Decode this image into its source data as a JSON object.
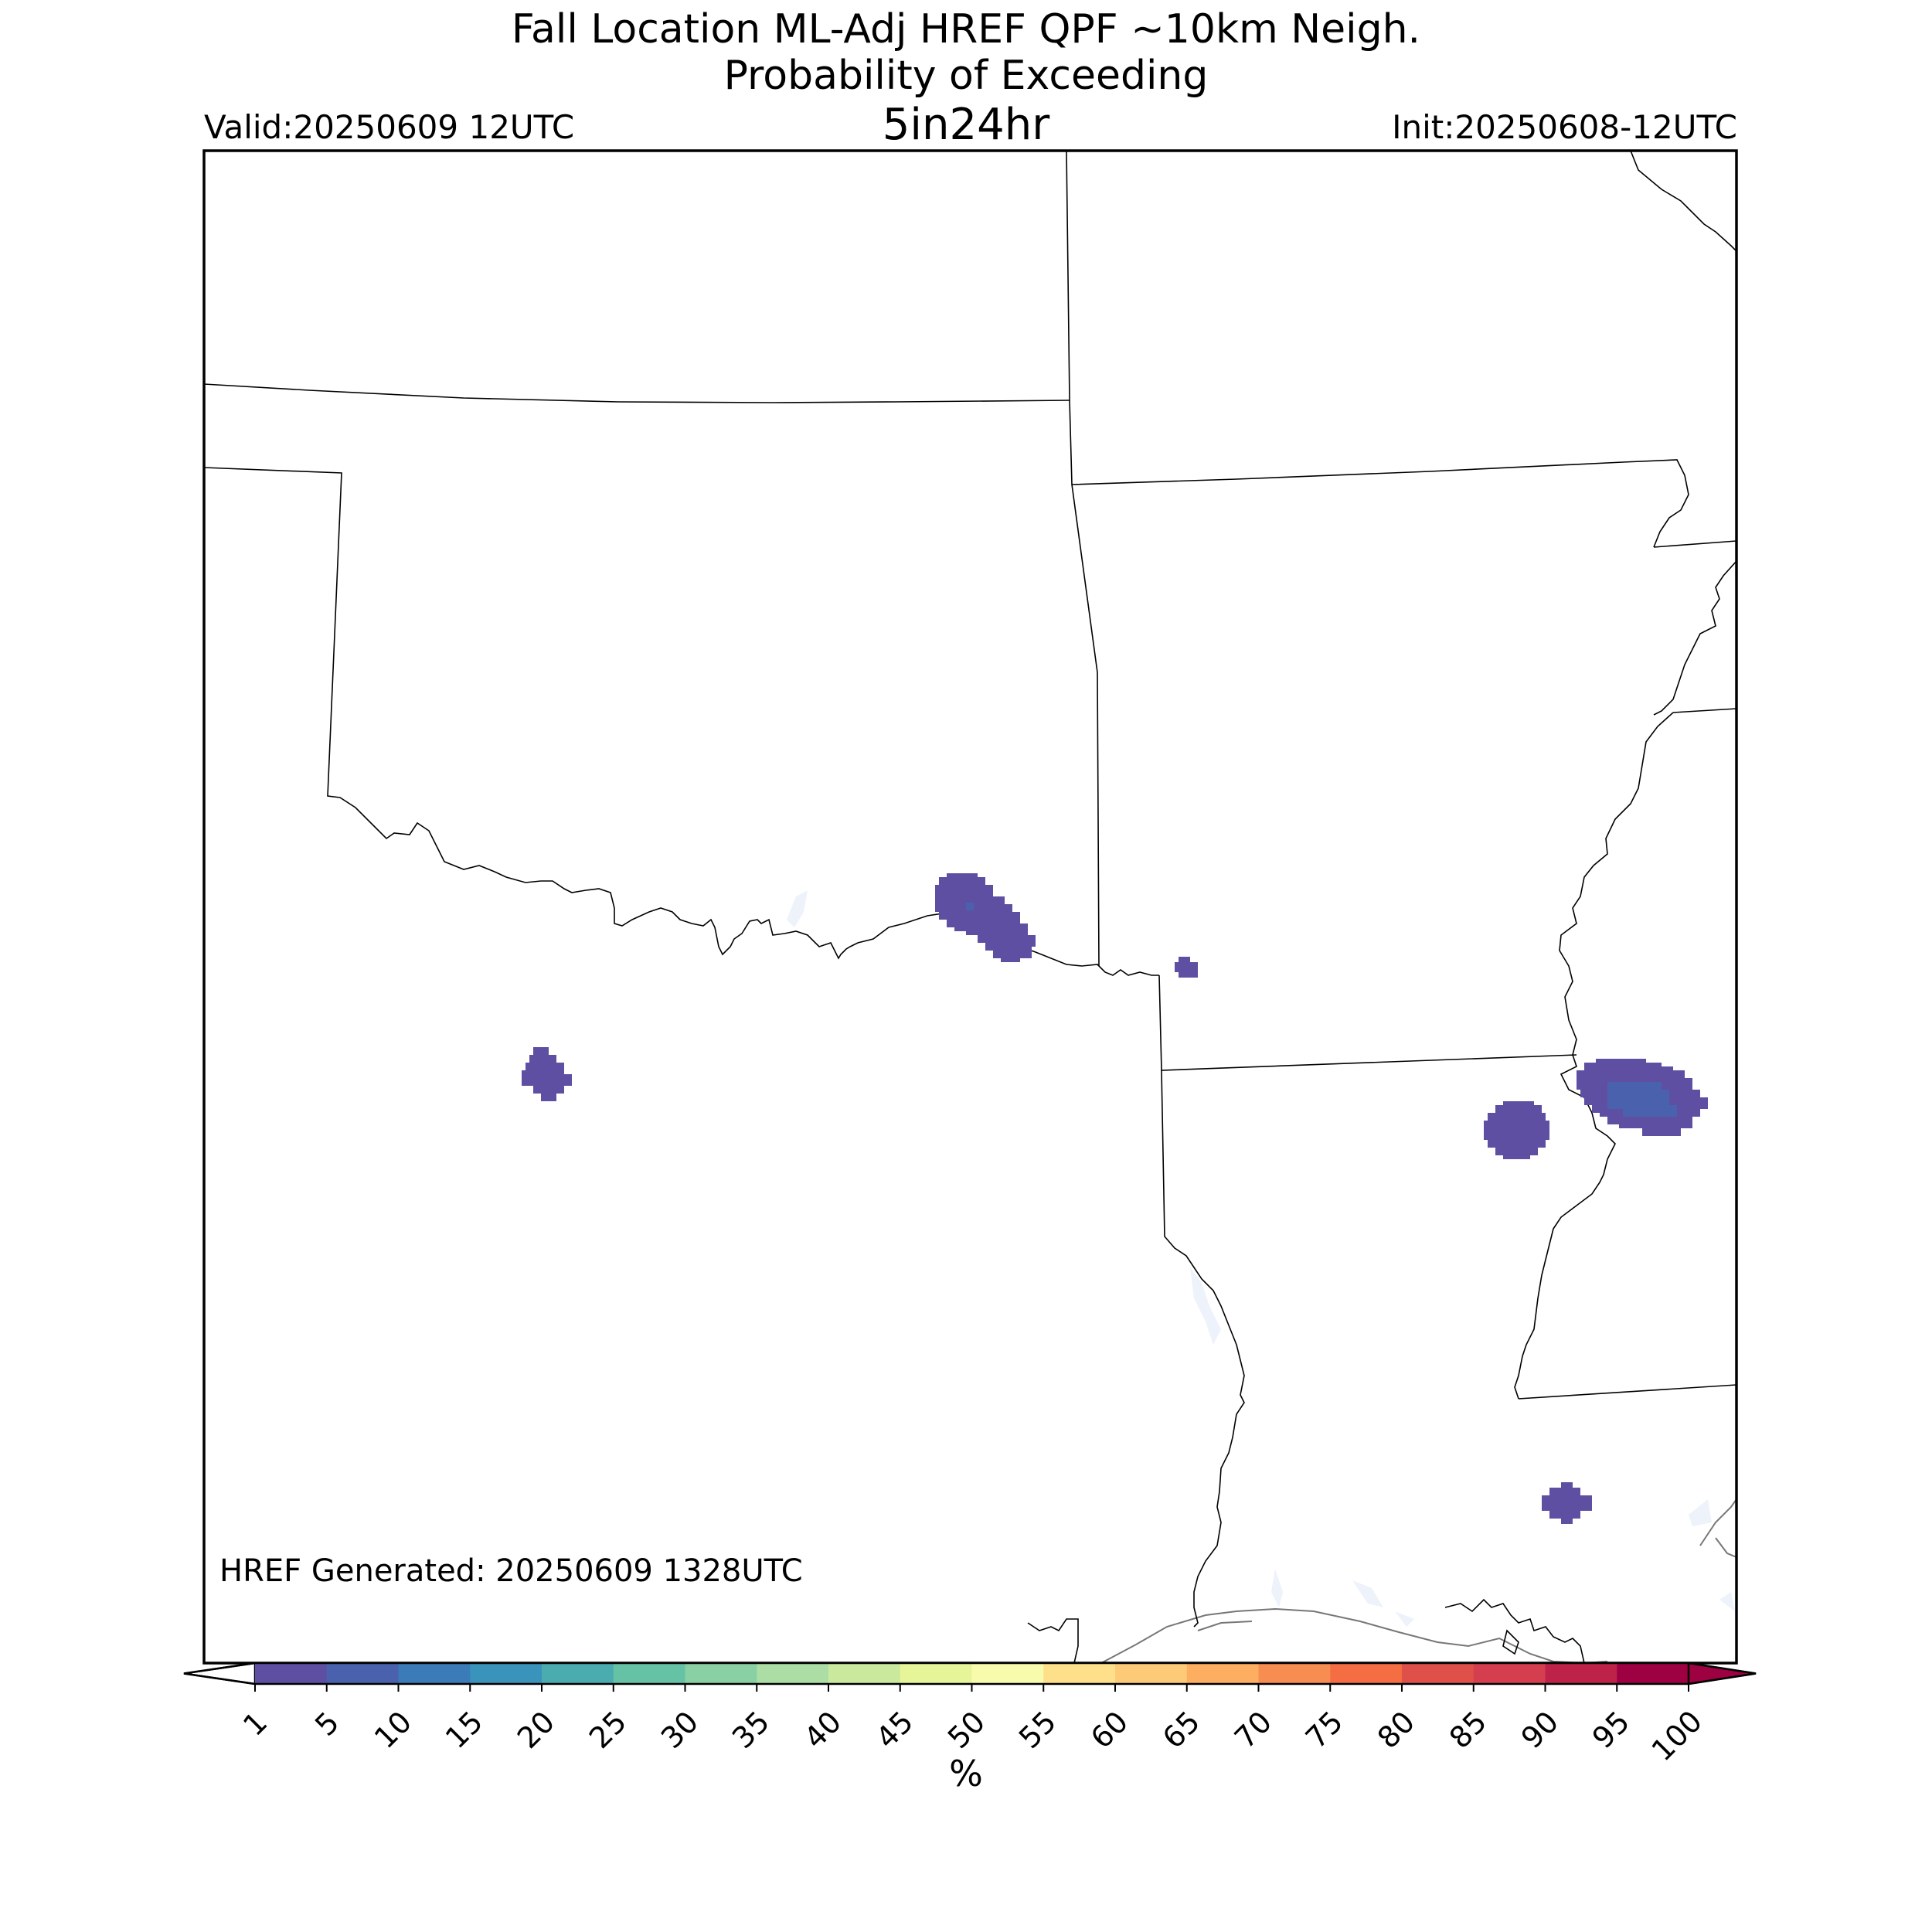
{
  "title": {
    "line1": "Fall Location ML-Adj HREF QPF ~10km Neigh.",
    "line2": "Probability of Exceeding",
    "line3": "5in24hr"
  },
  "valid": "Valid:20250609 12UTC",
  "init": "Init:20250608-12UTC",
  "generated": "HREF Generated: 20250609 1328UTC",
  "colorbar": {
    "label": "%",
    "ticks": [
      "1",
      "5",
      "10",
      "15",
      "20",
      "25",
      "30",
      "35",
      "40",
      "45",
      "50",
      "55",
      "60",
      "65",
      "70",
      "75",
      "80",
      "85",
      "90",
      "95",
      "100"
    ],
    "colors": [
      "#5e4fa2",
      "#4a62ad",
      "#3a7bb8",
      "#3a93bb",
      "#4bacb0",
      "#66c2a5",
      "#89d0a4",
      "#abdda4",
      "#cbe99d",
      "#e6f598",
      "#f8fbac",
      "#fee08b",
      "#fdcb77",
      "#fdae61",
      "#f88d52",
      "#f46d43",
      "#e0504a",
      "#d53e4f",
      "#be2248",
      "#9e0142"
    ],
    "under_color": "#ffffff",
    "over_color": "#9e0142"
  },
  "features": {
    "blobs": [
      {
        "name": "probability-area-red-river",
        "color": "#5e4fa2"
      },
      {
        "name": "probability-area-west-texas",
        "color": "#5e4fa2"
      },
      {
        "name": "probability-area-east-texas-ok",
        "color": "#5e4fa2"
      },
      {
        "name": "probability-area-north-louisiana",
        "color": "#5e4fa2"
      },
      {
        "name": "probability-area-mississippi",
        "color": "#5e4fa2",
        "core_color": "#4a62ad"
      },
      {
        "name": "probability-area-southeast-louisiana",
        "color": "#5e4fa2"
      }
    ]
  }
}
